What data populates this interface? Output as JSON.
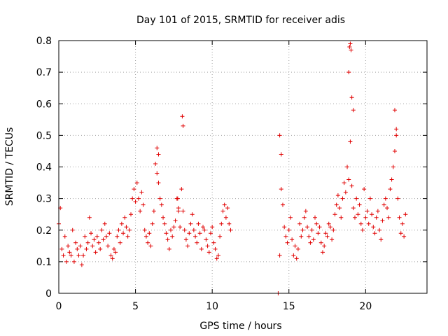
{
  "chart_data": {
    "type": "scatter",
    "title": "Day 101 of 2015, SRMTID for receiver adis",
    "xlabel": "GPS time / hours",
    "ylabel": "SRMTID / TECUs",
    "xlim": [
      0,
      24
    ],
    "ylim": [
      0,
      0.8
    ],
    "xticks": [
      0,
      5,
      10,
      15,
      20
    ],
    "xtick_labels": [
      "0",
      "5",
      "10",
      "15",
      "20"
    ],
    "yticks": [
      0,
      0.1,
      0.2,
      0.3,
      0.4,
      0.5,
      0.6,
      0.7,
      0.8
    ],
    "ytick_labels": [
      "0",
      "0.1",
      "0.2",
      "0.3",
      "0.4",
      "0.5",
      "0.6",
      "0.7",
      "0.8"
    ],
    "grid": true,
    "marker": "+",
    "color": "#e00000",
    "series": [
      {
        "name": "SRMTID",
        "x": [
          0.0,
          0.1,
          0.2,
          0.3,
          0.4,
          0.5,
          0.6,
          0.7,
          0.8,
          0.9,
          1.0,
          1.1,
          1.2,
          1.3,
          1.4,
          1.5,
          1.6,
          1.7,
          1.8,
          1.9,
          2.0,
          2.1,
          2.2,
          2.3,
          2.4,
          2.5,
          2.6,
          2.7,
          2.8,
          2.9,
          3.0,
          3.1,
          3.2,
          3.3,
          3.4,
          3.5,
          3.6,
          3.7,
          3.8,
          3.9,
          4.0,
          4.1,
          4.2,
          4.3,
          4.4,
          4.5,
          4.6,
          4.7,
          4.8,
          4.9,
          5.0,
          5.1,
          5.2,
          5.3,
          5.4,
          5.5,
          5.6,
          5.7,
          5.8,
          5.9,
          6.0,
          6.1,
          6.2,
          6.3,
          6.4,
          6.5,
          6.6,
          6.7,
          6.8,
          6.9,
          7.0,
          7.1,
          7.2,
          7.3,
          7.4,
          7.5,
          7.6,
          7.7,
          7.8,
          7.9,
          8.0,
          8.1,
          8.2,
          8.3,
          8.4,
          8.5,
          8.6,
          8.7,
          8.8,
          8.9,
          9.0,
          9.1,
          9.2,
          9.3,
          9.4,
          9.5,
          9.6,
          9.7,
          9.8,
          9.9,
          10.0,
          10.1,
          10.2,
          10.3,
          10.4,
          10.5,
          10.6,
          10.7,
          10.8,
          10.9,
          11.0,
          11.1,
          11.2,
          14.3,
          14.4,
          14.5,
          14.6,
          14.7,
          14.8,
          14.9,
          15.0,
          15.1,
          15.2,
          15.3,
          15.4,
          15.5,
          15.6,
          15.7,
          15.8,
          15.9,
          16.0,
          16.1,
          16.2,
          16.3,
          16.4,
          16.5,
          16.6,
          16.7,
          16.8,
          16.9,
          17.0,
          17.1,
          17.2,
          17.3,
          17.4,
          17.5,
          17.6,
          17.7,
          17.8,
          17.9,
          18.0,
          18.1,
          18.2,
          18.3,
          18.4,
          18.5,
          18.6,
          18.7,
          18.8,
          18.9,
          19.0,
          19.1,
          19.2,
          19.3,
          19.4,
          19.5,
          19.6,
          19.7,
          19.8,
          19.9,
          20.0,
          20.1,
          20.2,
          20.3,
          20.4,
          20.5,
          20.6,
          20.7,
          20.8,
          20.9,
          21.0,
          21.1,
          21.2,
          21.3,
          21.4,
          21.5,
          21.6,
          21.7,
          21.8,
          21.9,
          22.0,
          22.1,
          22.2,
          22.3,
          22.4,
          22.5,
          22.6,
          8.05,
          8.1,
          18.95,
          19.0,
          19.05,
          18.9,
          19.1,
          19.2,
          21.9,
          22.0,
          7.75,
          7.8,
          6.4,
          6.5,
          14.4,
          14.5
        ],
        "y": [
          0.22,
          0.27,
          0.14,
          0.12,
          0.18,
          0.1,
          0.15,
          0.13,
          0.12,
          0.2,
          0.1,
          0.16,
          0.14,
          0.12,
          0.15,
          0.09,
          0.12,
          0.18,
          0.14,
          0.16,
          0.24,
          0.19,
          0.15,
          0.17,
          0.13,
          0.18,
          0.16,
          0.14,
          0.2,
          0.17,
          0.22,
          0.18,
          0.15,
          0.19,
          0.12,
          0.11,
          0.14,
          0.13,
          0.18,
          0.2,
          0.16,
          0.22,
          0.19,
          0.24,
          0.21,
          0.18,
          0.2,
          0.25,
          0.3,
          0.33,
          0.29,
          0.35,
          0.3,
          0.26,
          0.32,
          0.28,
          0.2,
          0.18,
          0.16,
          0.19,
          0.15,
          0.22,
          0.26,
          0.41,
          0.38,
          0.35,
          0.3,
          0.28,
          0.24,
          0.22,
          0.19,
          0.17,
          0.14,
          0.2,
          0.18,
          0.21,
          0.23,
          0.3,
          0.27,
          0.21,
          0.33,
          0.26,
          0.2,
          0.17,
          0.15,
          0.19,
          0.22,
          0.25,
          0.2,
          0.18,
          0.16,
          0.22,
          0.19,
          0.14,
          0.21,
          0.2,
          0.17,
          0.15,
          0.13,
          0.19,
          0.21,
          0.16,
          0.14,
          0.11,
          0.12,
          0.18,
          0.22,
          0.26,
          0.28,
          0.24,
          0.27,
          0.22,
          0.2,
          0.0,
          0.12,
          0.33,
          0.28,
          0.21,
          0.18,
          0.16,
          0.2,
          0.24,
          0.17,
          0.12,
          0.15,
          0.11,
          0.14,
          0.22,
          0.18,
          0.2,
          0.24,
          0.26,
          0.21,
          0.18,
          0.16,
          0.2,
          0.17,
          0.24,
          0.22,
          0.19,
          0.21,
          0.16,
          0.13,
          0.15,
          0.19,
          0.18,
          0.22,
          0.21,
          0.17,
          0.2,
          0.25,
          0.28,
          0.31,
          0.27,
          0.24,
          0.3,
          0.35,
          0.32,
          0.4,
          0.36,
          0.48,
          0.34,
          0.27,
          0.24,
          0.3,
          0.25,
          0.28,
          0.22,
          0.2,
          0.33,
          0.24,
          0.26,
          0.22,
          0.3,
          0.25,
          0.21,
          0.19,
          0.24,
          0.26,
          0.2,
          0.17,
          0.23,
          0.28,
          0.3,
          0.27,
          0.24,
          0.33,
          0.36,
          0.4,
          0.45,
          0.5,
          0.3,
          0.24,
          0.19,
          0.22,
          0.18,
          0.25,
          0.56,
          0.53,
          0.78,
          0.79,
          0.77,
          0.7,
          0.62,
          0.58,
          0.58,
          0.52,
          0.3,
          0.26,
          0.46,
          0.44,
          0.5,
          0.44
        ]
      }
    ]
  }
}
